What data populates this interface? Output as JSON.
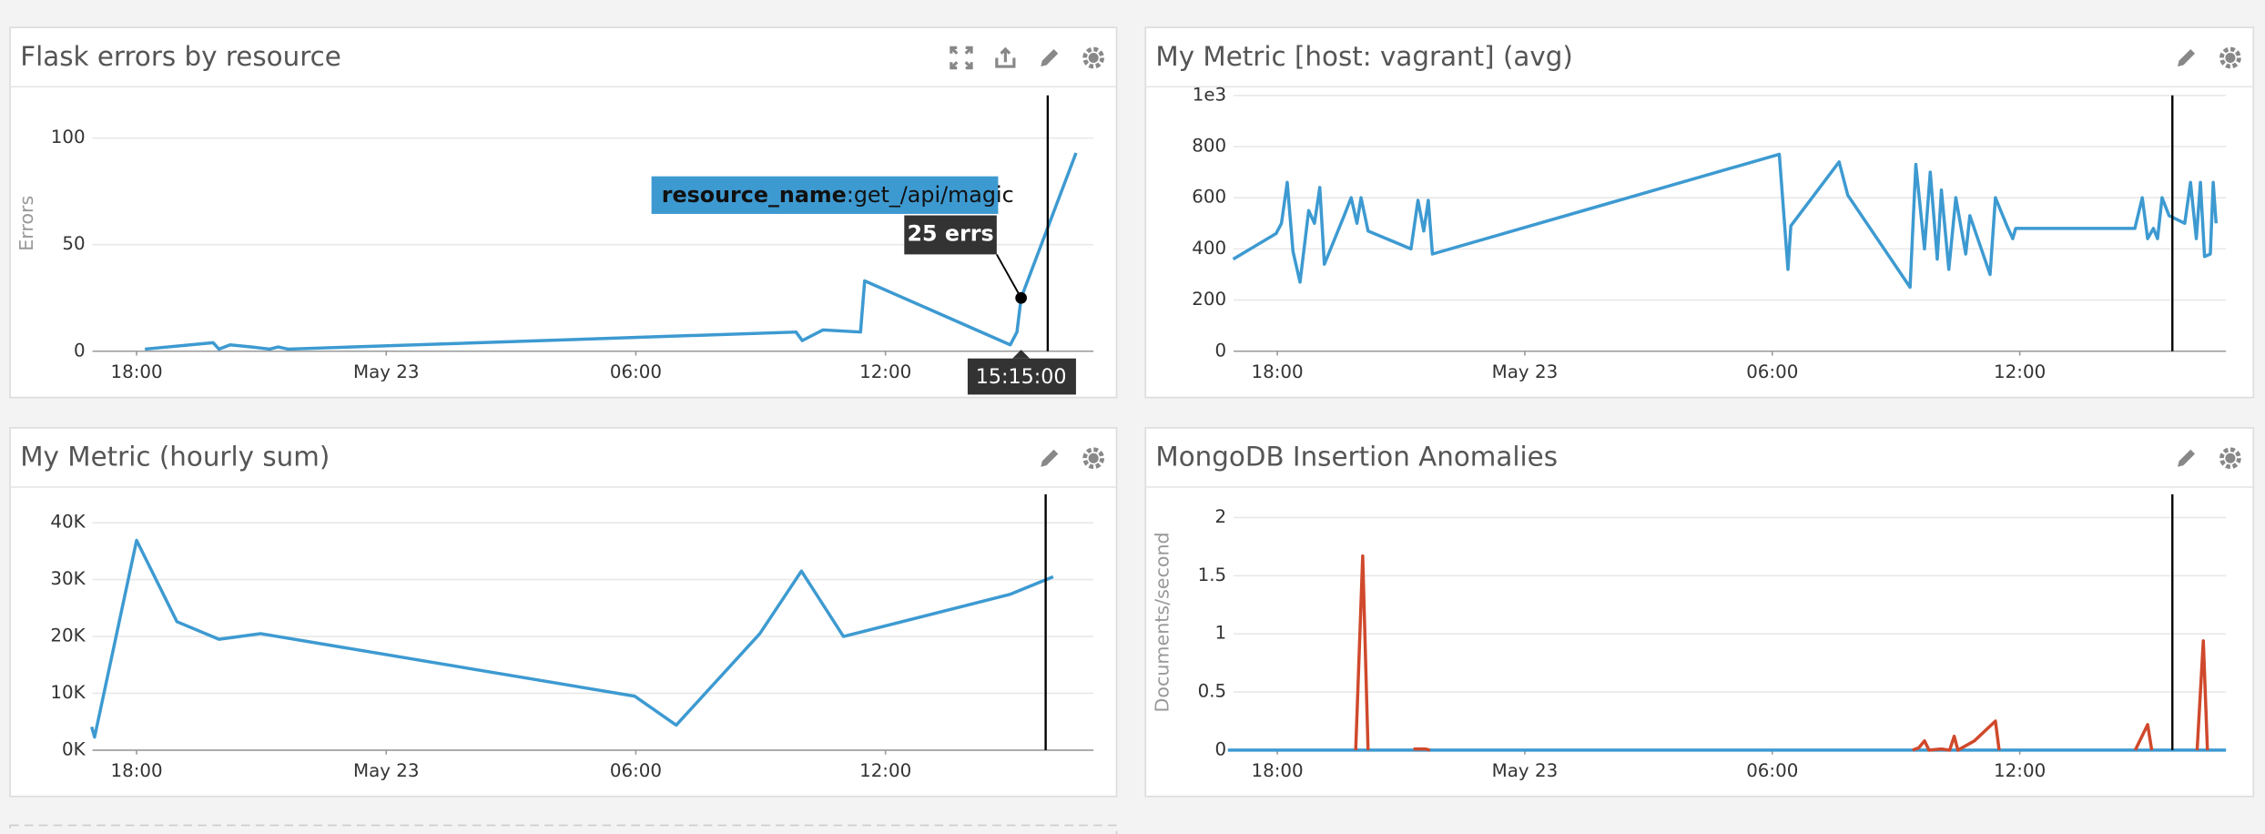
{
  "chart_data": [
    {
      "type": "line",
      "title": "Flask errors by resource",
      "ylabel": "Errors",
      "xlim": [
        16.8,
        41
      ],
      "xticks": [
        {
          "value": 18,
          "label": "18:00"
        },
        {
          "value": 24,
          "label": "May 23"
        },
        {
          "value": 30,
          "label": "06:00"
        },
        {
          "value": 36,
          "label": "12:00"
        }
      ],
      "ylim": [
        0,
        120
      ],
      "yticks": [
        0,
        50,
        100
      ],
      "grid": true,
      "marker_x": 39.9,
      "series": [
        {
          "color": "#3d9ad1",
          "x": [
            18.2,
            19.84,
            19.98,
            20.25,
            20.77,
            21.2,
            21.4,
            21.64,
            33.85,
            34.0,
            34.5,
            35.4,
            35.5,
            39.0,
            39.16,
            39.26,
            40.58
          ],
          "values": [
            1,
            4,
            1,
            3,
            2,
            1,
            2,
            1,
            9,
            5,
            10,
            9,
            33,
            3,
            9,
            25,
            93
          ]
        }
      ],
      "tooltip": {
        "key": "resource_name",
        "value": ":get_/api/magic",
        "value_label": "25 errs",
        "time_label": "15:15:00"
      }
    },
    {
      "type": "line",
      "title": "My Metric [host: vagrant] (avg)",
      "xlim": [
        16.8,
        41
      ],
      "xticks": [
        {
          "value": 18,
          "label": "18:00"
        },
        {
          "value": 24,
          "label": "May 23"
        },
        {
          "value": 30,
          "label": "06:00"
        },
        {
          "value": 36,
          "label": "12:00"
        }
      ],
      "ylim": [
        0,
        1000
      ],
      "yticks": [
        0,
        200,
        400,
        600,
        800,
        {
          "value": 1000,
          "label": "1e3"
        }
      ],
      "grid": true,
      "marker_x": 39.7,
      "series": [
        {
          "color": "#3d9ad1",
          "x": [
            16.93,
            17.97,
            18.1,
            18.24,
            18.38,
            18.55,
            18.76,
            18.9,
            19.03,
            19.14,
            19.62,
            19.79,
            19.93,
            20.03,
            20.2,
            21.24,
            21.41,
            21.55,
            21.66,
            21.76,
            30.17,
            30.38,
            30.45,
            31.62,
            31.83,
            33.34,
            33.48,
            33.69,
            33.83,
            34.0,
            34.1,
            34.28,
            34.45,
            34.69,
            34.79,
            35.28,
            35.41,
            35.69,
            35.83,
            35.9,
            38.79,
            38.97,
            39.1,
            39.24,
            39.34,
            39.45,
            39.62,
            40.0,
            40.14,
            40.28,
            40.38,
            40.48,
            40.62,
            40.69,
            40.76
          ],
          "values": [
            360,
            460,
            500,
            660,
            390,
            270,
            550,
            500,
            640,
            340,
            530,
            600,
            500,
            600,
            470,
            400,
            590,
            470,
            590,
            380,
            770,
            320,
            490,
            740,
            610,
            250,
            730,
            400,
            700,
            360,
            630,
            320,
            600,
            380,
            530,
            300,
            600,
            490,
            440,
            480,
            480,
            600,
            440,
            480,
            440,
            600,
            530,
            500,
            660,
            440,
            660,
            370,
            380,
            660,
            500
          ]
        }
      ]
    },
    {
      "type": "line",
      "title": "My Metric (hourly sum)",
      "xlim": [
        16.8,
        41
      ],
      "xticks": [
        {
          "value": 18,
          "label": "18:00"
        },
        {
          "value": 24,
          "label": "May 23"
        },
        {
          "value": 30,
          "label": "06:00"
        },
        {
          "value": 36,
          "label": "12:00"
        }
      ],
      "ylim": [
        0,
        45000
      ],
      "yticks": [
        {
          "value": 0,
          "label": "0K"
        },
        {
          "value": 10000,
          "label": "10K"
        },
        {
          "value": 20000,
          "label": "20K"
        },
        {
          "value": 30000,
          "label": "30K"
        },
        {
          "value": 40000,
          "label": "40K"
        }
      ],
      "grid": true,
      "marker_x": 39.85,
      "series": [
        {
          "color": "#3d9ad1",
          "x": [
            16.92,
            16.99,
            18,
            18.97,
            19.98,
            20.98,
            29.97,
            30.97,
            32.98,
            33.98,
            34.99,
            38.99,
            40.03
          ],
          "values": [
            4100,
            2300,
            36900,
            22600,
            19500,
            20500,
            9500,
            4400,
            20500,
            31500,
            20000,
            27400,
            30500
          ]
        }
      ]
    },
    {
      "type": "line",
      "title": "MongoDB Insertion Anomalies",
      "ylabel": "Documents/second",
      "xlim": [
        16.8,
        41
      ],
      "xticks": [
        {
          "value": 18,
          "label": "18:00"
        },
        {
          "value": 24,
          "label": "May 23"
        },
        {
          "value": 30,
          "label": "06:00"
        },
        {
          "value": 36,
          "label": "12:00"
        }
      ],
      "ylim": [
        0,
        2.2
      ],
      "yticks": [
        0,
        0.5,
        1,
        1.5,
        2
      ],
      "grid": true,
      "marker_x": 39.7,
      "series": [
        {
          "color": "#3d9ad1",
          "x": [
            16.8,
            41
          ],
          "values": [
            0,
            0
          ]
        },
        {
          "color": "#d0492c",
          "x": [
            19.9,
            20.07,
            20.2,
            20.8,
            21.3,
            21.45,
            21.6,
            21.7,
            22.2,
            33.4,
            33.55,
            33.69,
            33.8,
            34.1,
            34.3,
            34.41,
            34.5,
            34.9,
            35.41,
            35.5,
            36.0,
            38.8,
            39.1,
            39.2,
            39.5,
            40.3,
            40.45,
            40.55
          ],
          "values": [
            0,
            1.67,
            0,
            null,
            0.01,
            0.01,
            0.01,
            0,
            null,
            0,
            0.02,
            0.08,
            0,
            0.01,
            0,
            0.12,
            0,
            0.08,
            0.25,
            0,
            null,
            0,
            0.22,
            0,
            null,
            0,
            0.94,
            0
          ]
        }
      ]
    }
  ]
}
